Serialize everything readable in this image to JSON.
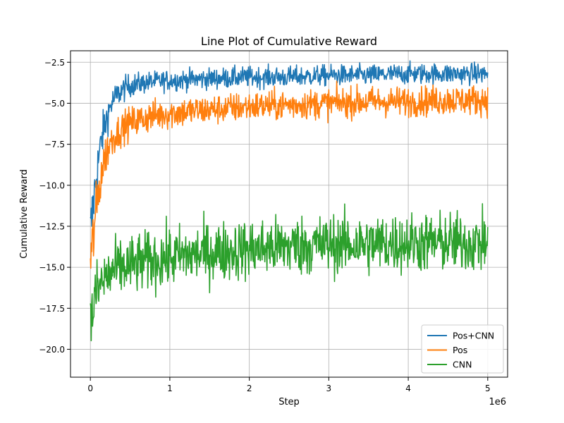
{
  "chart_data": {
    "type": "line",
    "title": "Line Plot of Cumulative Reward",
    "xlabel": "Step",
    "ylabel": "Cumulative Reward",
    "x_offset_label": "1e6",
    "xlim": [
      -0.25,
      5.25
    ],
    "ylim": [
      -21.7,
      -1.8
    ],
    "x_ticks": [
      0,
      1,
      2,
      3,
      4,
      5
    ],
    "x_tick_labels": [
      "0",
      "1",
      "2",
      "3",
      "4",
      "5"
    ],
    "y_ticks": [
      -2.5,
      -5.0,
      -7.5,
      -10.0,
      -12.5,
      -15.0,
      -17.5,
      -20.0
    ],
    "y_tick_labels": [
      "−2.5",
      "−5.0",
      "−7.5",
      "−10.0",
      "−12.5",
      "−15.0",
      "−17.5",
      "−20.0"
    ],
    "grid": true,
    "legend_position": "bottom-right",
    "x": [
      0,
      0.05,
      0.1,
      0.15,
      0.2,
      0.25,
      0.3,
      0.4,
      0.5,
      0.75,
      1.0,
      1.5,
      2.0,
      2.5,
      3.0,
      3.5,
      4.0,
      4.5,
      5.0
    ],
    "series": [
      {
        "name": "Pos+CNN",
        "color": "#1f77b4",
        "values": [
          -13.0,
          -10.5,
          -8.5,
          -7.0,
          -6.0,
          -5.2,
          -4.7,
          -4.2,
          -3.9,
          -3.7,
          -3.6,
          -3.5,
          -3.4,
          -3.4,
          -3.3,
          -3.3,
          -3.2,
          -3.2,
          -3.2
        ],
        "noise": [
          1.5,
          1.2,
          1.0,
          0.9,
          0.8,
          0.7,
          0.6,
          0.55,
          0.5,
          0.45,
          0.45,
          0.45,
          0.45,
          0.45,
          0.45,
          0.45,
          0.45,
          0.45,
          0.45
        ]
      },
      {
        "name": "Pos",
        "color": "#ff7f0e",
        "values": [
          -15.0,
          -12.5,
          -10.5,
          -9.0,
          -8.0,
          -7.4,
          -7.0,
          -6.5,
          -6.2,
          -5.8,
          -5.6,
          -5.4,
          -5.2,
          -5.1,
          -5.0,
          -4.9,
          -4.9,
          -4.8,
          -4.8
        ],
        "noise": [
          1.6,
          1.3,
          1.1,
          1.0,
          0.9,
          0.8,
          0.75,
          0.7,
          0.7,
          0.7,
          0.7,
          0.65,
          0.65,
          0.65,
          0.65,
          0.65,
          0.65,
          0.65,
          0.65
        ]
      },
      {
        "name": "CNN",
        "color": "#2ca02c",
        "values": [
          -18.5,
          -17.0,
          -16.3,
          -15.9,
          -15.6,
          -15.4,
          -15.2,
          -15.0,
          -14.9,
          -14.6,
          -14.4,
          -14.1,
          -13.9,
          -13.7,
          -13.6,
          -13.6,
          -13.5,
          -13.5,
          -13.5
        ],
        "noise": [
          1.8,
          1.5,
          1.4,
          1.3,
          1.3,
          1.3,
          1.3,
          1.3,
          1.3,
          1.3,
          1.3,
          1.3,
          1.3,
          1.3,
          1.3,
          1.3,
          1.3,
          1.3,
          1.3
        ]
      }
    ]
  }
}
